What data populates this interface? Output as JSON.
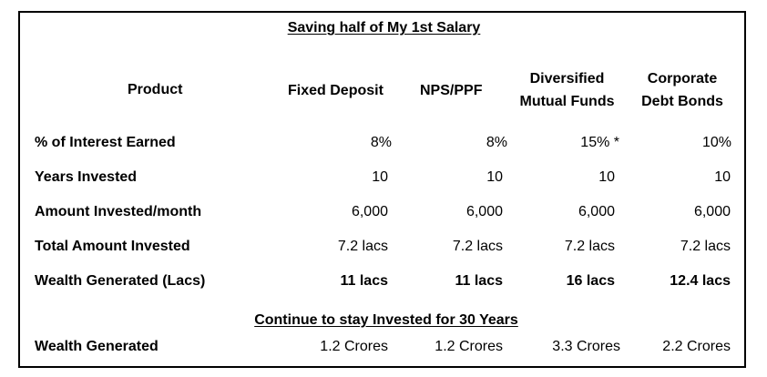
{
  "title": "Saving half of My 1st Salary ",
  "subtitle": "Continue to stay Invested for 30 Years",
  "header": {
    "row_label": "Product",
    "columns": [
      [
        "Fixed Deposit"
      ],
      [
        "NPS/PPF"
      ],
      [
        "Diversified",
        "Mutual Funds"
      ],
      [
        "Corporate",
        "Debt Bonds"
      ]
    ]
  },
  "rows": [
    {
      "label": "% of Interest Earned",
      "values": [
        "8%",
        "8%",
        "15% *",
        "10%"
      ],
      "bold": false
    },
    {
      "label": "Years Invested",
      "values": [
        "10",
        "10",
        "10",
        "10"
      ],
      "bold": false
    },
    {
      "label": "Amount Invested/month",
      "values": [
        "6,000",
        "6,000",
        "6,000",
        "6,000"
      ],
      "bold": false
    },
    {
      "label": "Total Amount Invested",
      "values": [
        "7.2 lacs",
        "7.2 lacs",
        "7.2 lacs",
        "7.2 lacs"
      ],
      "bold": false
    },
    {
      "label": "Wealth Generated (Lacs)",
      "values": [
        "11 lacs",
        "11 lacs",
        "16 lacs",
        "12.4 lacs"
      ],
      "bold": true
    }
  ],
  "long_term_row": {
    "label": "Wealth Generated",
    "values": [
      "1.2 Crores",
      "1.2 Crores",
      "3.3 Crores",
      "2.2 Crores"
    ]
  }
}
